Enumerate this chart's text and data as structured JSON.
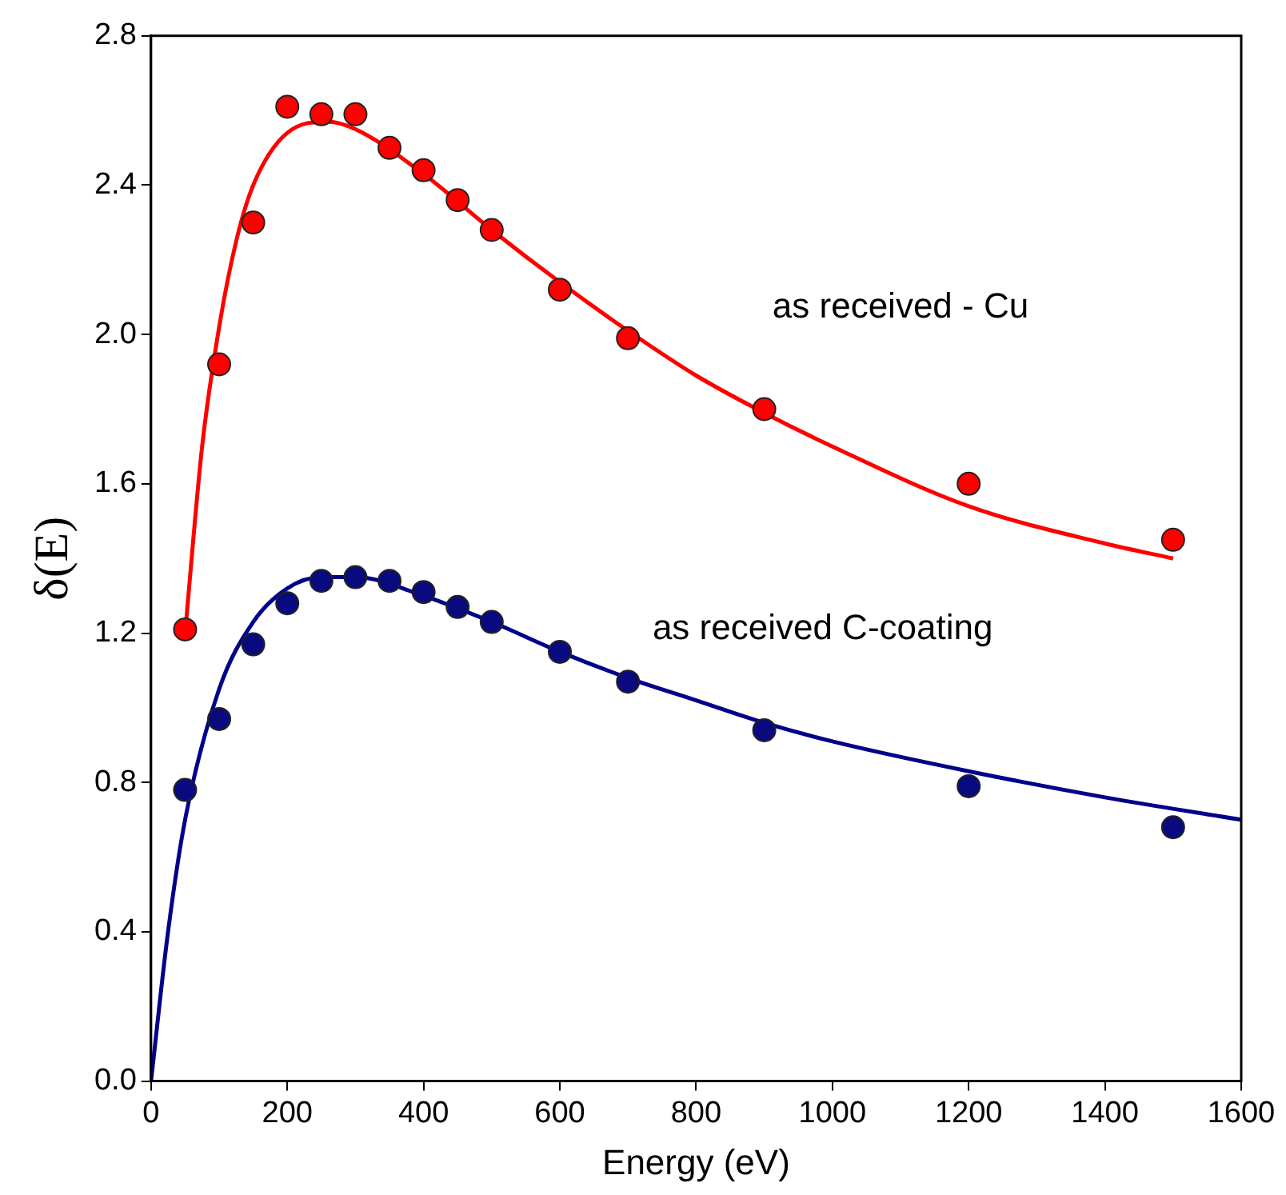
{
  "chart_data": {
    "type": "scatter",
    "xlabel": "Energy (eV)",
    "ylabel": "δ(E)",
    "xlim": [
      0,
      1600
    ],
    "xticks": [
      0,
      200,
      400,
      600,
      800,
      1000,
      1200,
      1400,
      1600
    ],
    "ylim": [
      0,
      2.8
    ],
    "yticks": [
      {
        "value": 0,
        "label": "0.0"
      },
      0.4,
      0.8,
      1.2,
      1.6,
      {
        "value": 2,
        "label": "2.0"
      },
      2.4,
      2.8
    ],
    "grid": false,
    "legend": false,
    "marker": "circle",
    "series": [
      {
        "type": "line",
        "marker": "none",
        "color": "#ff0000",
        "x": [
          50,
          75,
          100,
          125,
          150,
          200,
          260,
          300,
          400,
          500,
          600,
          700,
          800,
          900,
          1000,
          1200,
          1400,
          1500
        ],
        "values": [
          1.2,
          1.7,
          2.02,
          2.25,
          2.4,
          2.54,
          2.57,
          2.55,
          2.43,
          2.28,
          2.14,
          2.01,
          1.89,
          1.79,
          1.7,
          1.54,
          1.44,
          1.4
        ]
      },
      {
        "type": "line",
        "marker": "none",
        "color": "#00008b",
        "x": [
          0,
          25,
          50,
          100,
          150,
          200,
          250,
          300,
          400,
          500,
          600,
          700,
          800,
          900,
          1000,
          1200,
          1400,
          1600
        ],
        "values": [
          0,
          0.4,
          0.7,
          1.05,
          1.23,
          1.32,
          1.35,
          1.35,
          1.3,
          1.23,
          1.15,
          1.08,
          1.02,
          0.96,
          0.91,
          0.83,
          0.76,
          0.7
        ]
      },
      {
        "color": "#ff0000",
        "x": [
          50,
          100,
          150,
          200,
          250,
          300,
          350,
          400,
          450,
          500,
          600,
          700,
          900,
          1200,
          1500
        ],
        "values": [
          1.21,
          1.92,
          2.3,
          2.61,
          2.59,
          2.59,
          2.5,
          2.44,
          2.36,
          2.28,
          2.12,
          1.99,
          1.8,
          1.6,
          1.45
        ]
      },
      {
        "color": "#0a0a80",
        "x": [
          50,
          100,
          150,
          200,
          250,
          300,
          350,
          400,
          450,
          500,
          600,
          700,
          900,
          1200,
          1500
        ],
        "values": [
          0.78,
          0.97,
          1.17,
          1.28,
          1.34,
          1.35,
          1.34,
          1.31,
          1.27,
          1.23,
          1.15,
          1.07,
          0.94,
          0.79,
          0.68
        ]
      }
    ],
    "annotations": [
      "as received - Cu",
      "as received C-coating"
    ]
  }
}
